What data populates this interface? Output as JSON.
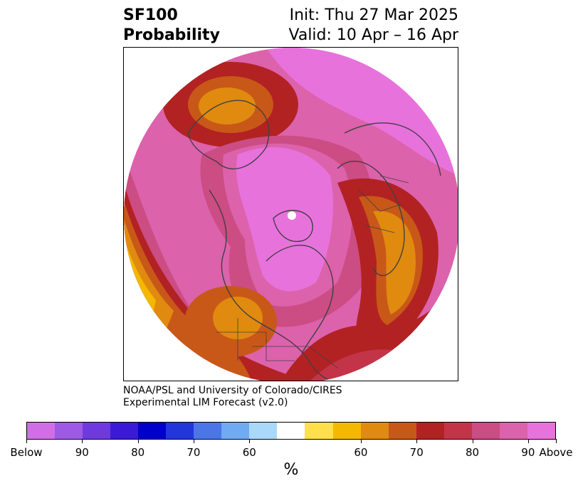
{
  "header": {
    "title_line1": "SF100",
    "title_line2": "Probability",
    "init": "Init: Thu 27 Mar 2025",
    "valid": "Valid: 10 Apr – 16 Apr"
  },
  "credit": {
    "line1": "NOAA/PSL and University of Colorado/CIRES",
    "line2": "Experimental LIM Forecast (v2.0)"
  },
  "colorbar": {
    "colors": [
      "#d16ee6",
      "#9e5ae6",
      "#6e3ae0",
      "#3a1ad6",
      "#0000cc",
      "#2236dc",
      "#4c76e8",
      "#70aaf2",
      "#aad8fa",
      "#ffffff",
      "#ffe04a",
      "#f5b800",
      "#e08a10",
      "#c85818",
      "#b22222",
      "#c43448",
      "#cc4c84",
      "#dc62ac",
      "#e872dc"
    ],
    "labels": [
      "Below",
      "90",
      "80",
      "70",
      "60",
      "60",
      "70",
      "80",
      "90",
      "Above"
    ],
    "unit": "%"
  },
  "map": {
    "colors": {
      "ocean_high": "#e872dc",
      "prob_90": "#dc62ac",
      "prob_85": "#cc4c84",
      "prob_80": "#b22222",
      "prob_75": "#c85818",
      "prob_70": "#e08a10",
      "prob_65": "#f5b800",
      "prob_60": "#ffe04a",
      "coast": "#404040"
    }
  }
}
